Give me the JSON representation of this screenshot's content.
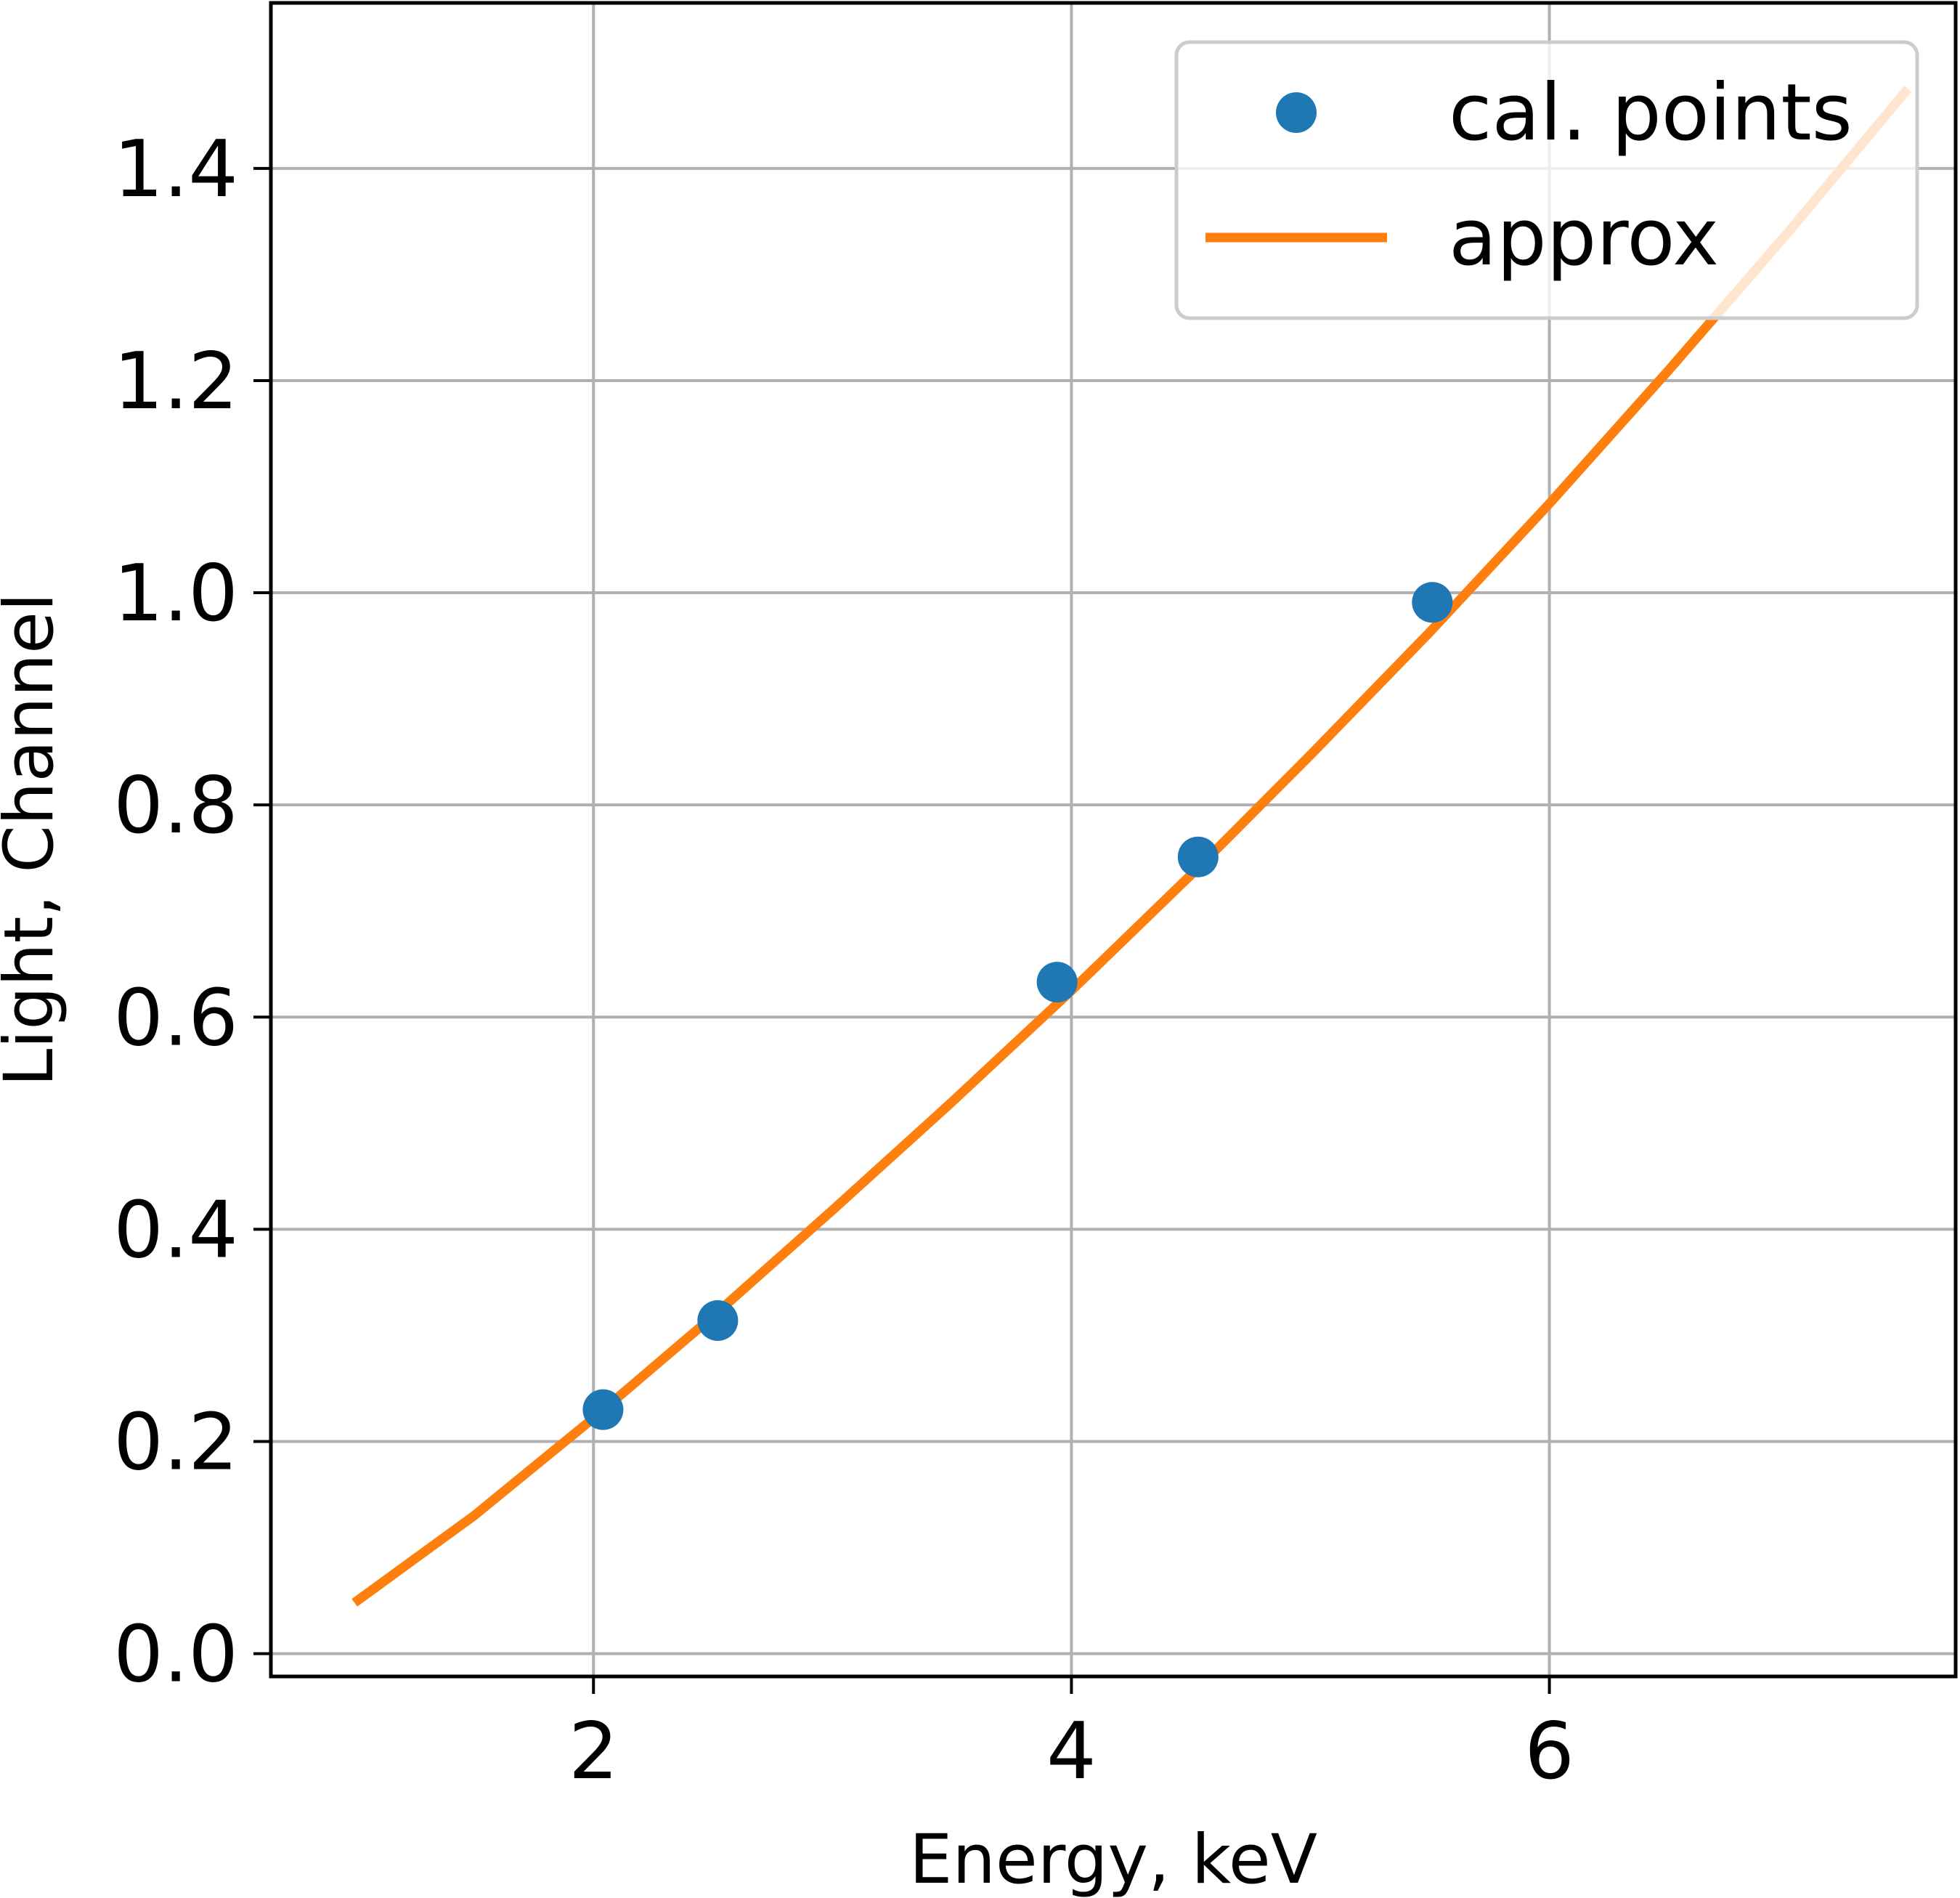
{
  "chart_data": {
    "type": "scatter",
    "xlabel": "Energy, keV",
    "ylabel": "Light, Channel",
    "xlim": [
      0.65,
      7.7
    ],
    "ylim": [
      -0.0215,
      1.556
    ],
    "xticks": [
      2,
      4,
      6
    ],
    "yticks": [
      0.0,
      0.2,
      0.4,
      0.6,
      0.8,
      1.0,
      1.2,
      1.4
    ],
    "xtick_labels": [
      "2",
      "4",
      "6"
    ],
    "ytick_labels": [
      "0.0",
      "0.2",
      "0.4",
      "0.6",
      "0.8",
      "1.0",
      "1.2",
      "1.4"
    ],
    "grid": true,
    "legend_position": "top-right",
    "series": [
      {
        "name": "cal. points",
        "kind": "scatter",
        "color": "#1f77b4",
        "x": [
          2.04,
          2.52,
          3.94,
          4.53,
          5.51
        ],
        "y": [
          0.23,
          0.314,
          0.633,
          0.751,
          0.991
        ]
      },
      {
        "name": "approx",
        "kind": "line",
        "color": "#ff7f0e",
        "x": [
          1.0,
          1.5,
          2.0,
          2.5,
          3.0,
          3.5,
          4.0,
          4.5,
          5.0,
          5.5,
          6.0,
          6.5,
          7.0,
          7.5
        ],
        "y": [
          0.048,
          0.13,
          0.222,
          0.318,
          0.418,
          0.52,
          0.625,
          0.734,
          0.847,
          0.963,
          1.084,
          1.21,
          1.34,
          1.475
        ]
      }
    ],
    "colors": {
      "grid": "#b0b0b0",
      "axes": "#000000",
      "legend_border": "#cccccc"
    }
  }
}
